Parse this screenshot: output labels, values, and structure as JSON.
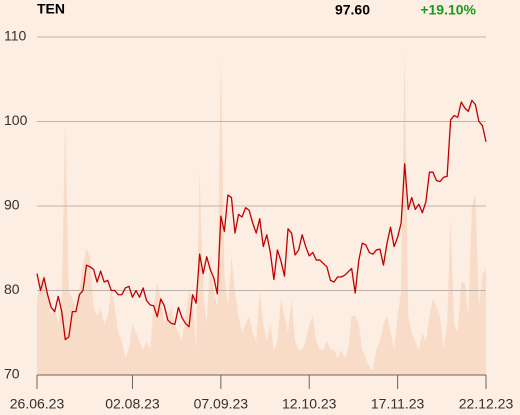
{
  "chart_data": {
    "type": "line",
    "title": "TEN",
    "last_price": "97.60",
    "change": "+19.10%",
    "change_color": "#1a9a1a",
    "ylim": [
      70,
      110
    ],
    "yticks": [
      70,
      80,
      90,
      100,
      110
    ],
    "grid": true,
    "xlim": [
      0,
      127
    ],
    "xticks": [
      {
        "value": 0,
        "label": "26.06.23"
      },
      {
        "value": 27,
        "label": "02.08.23"
      },
      {
        "value": 52,
        "label": "07.09.23"
      },
      {
        "value": 77,
        "label": "12.10.23"
      },
      {
        "value": 102,
        "label": "17.11.23"
      },
      {
        "value": 127,
        "label": "22.12.23"
      }
    ],
    "series": [
      {
        "type": "area",
        "color": "#f8dcc7",
        "values": [
          79,
          81,
          82,
          80,
          77,
          78,
          76,
          79,
          100.5,
          80,
          79,
          78,
          80,
          83,
          85,
          84,
          78,
          77,
          78,
          76,
          77,
          80,
          78,
          75,
          74,
          72,
          73,
          76,
          75,
          74,
          73,
          74,
          73,
          78,
          81,
          79,
          76,
          77,
          78,
          76,
          75,
          74,
          77,
          80,
          79,
          73,
          94,
          80,
          76,
          84,
          80,
          78,
          108,
          82,
          78,
          84,
          80,
          77,
          75,
          76,
          77,
          75,
          74,
          80,
          76,
          74,
          76,
          73,
          74,
          79,
          77,
          75,
          79,
          74,
          73,
          73,
          74,
          76,
          77,
          74,
          73,
          73,
          74,
          73,
          73,
          72,
          73,
          72,
          73,
          77,
          77,
          76,
          73,
          72,
          71,
          70.5,
          73,
          74,
          76,
          77,
          75,
          73,
          77,
          80,
          109,
          77,
          75,
          74,
          73,
          75,
          74,
          77,
          79,
          78,
          77,
          73,
          76,
          88.5,
          76,
          75,
          81,
          81,
          77,
          90,
          91.5,
          78,
          82,
          82.5
        ]
      },
      {
        "type": "line",
        "color": "#c00000",
        "values": [
          82,
          80,
          81.5,
          79.5,
          78,
          77.5,
          79.3,
          77.5,
          74.2,
          74.5,
          77.5,
          77.5,
          79.5,
          80,
          83,
          82.8,
          82.5,
          81,
          82.3,
          81,
          81.2,
          80,
          80,
          79.5,
          79.5,
          80.3,
          80.5,
          79.2,
          80,
          79.2,
          80.3,
          78.8,
          78.3,
          78.2,
          76.9,
          79,
          78.2,
          76.5,
          76.1,
          76,
          78,
          76.8,
          76.1,
          75.7,
          79.5,
          78.5,
          84.3,
          82,
          84,
          82.5,
          81.5,
          79.6,
          88.8,
          87,
          91.3,
          91,
          86.8,
          89,
          88.7,
          89.8,
          89.5,
          88,
          86.8,
          88.5,
          85.2,
          86.6,
          84.5,
          81.3,
          84.8,
          83.5,
          81.7,
          87.3,
          86.8,
          84.2,
          84.8,
          86.6,
          85.2,
          84.1,
          84.5,
          83.6,
          83.6,
          83.2,
          82.8,
          81.2,
          81,
          81.6,
          81.6,
          81.8,
          82.2,
          82.6,
          79.7,
          83.5,
          85.6,
          85.4,
          84.5,
          84.3,
          84.8,
          84.9,
          83,
          85.6,
          87.5,
          85.2,
          86.3,
          88,
          95,
          89.6,
          91,
          89.6,
          90.2,
          89.2,
          90.5,
          94,
          94,
          93,
          92.9,
          93.4,
          93.5,
          100.2,
          100.7,
          100.5,
          102.3,
          101.6,
          101.2,
          102.5,
          102,
          100,
          99.5,
          97.6
        ]
      }
    ]
  }
}
